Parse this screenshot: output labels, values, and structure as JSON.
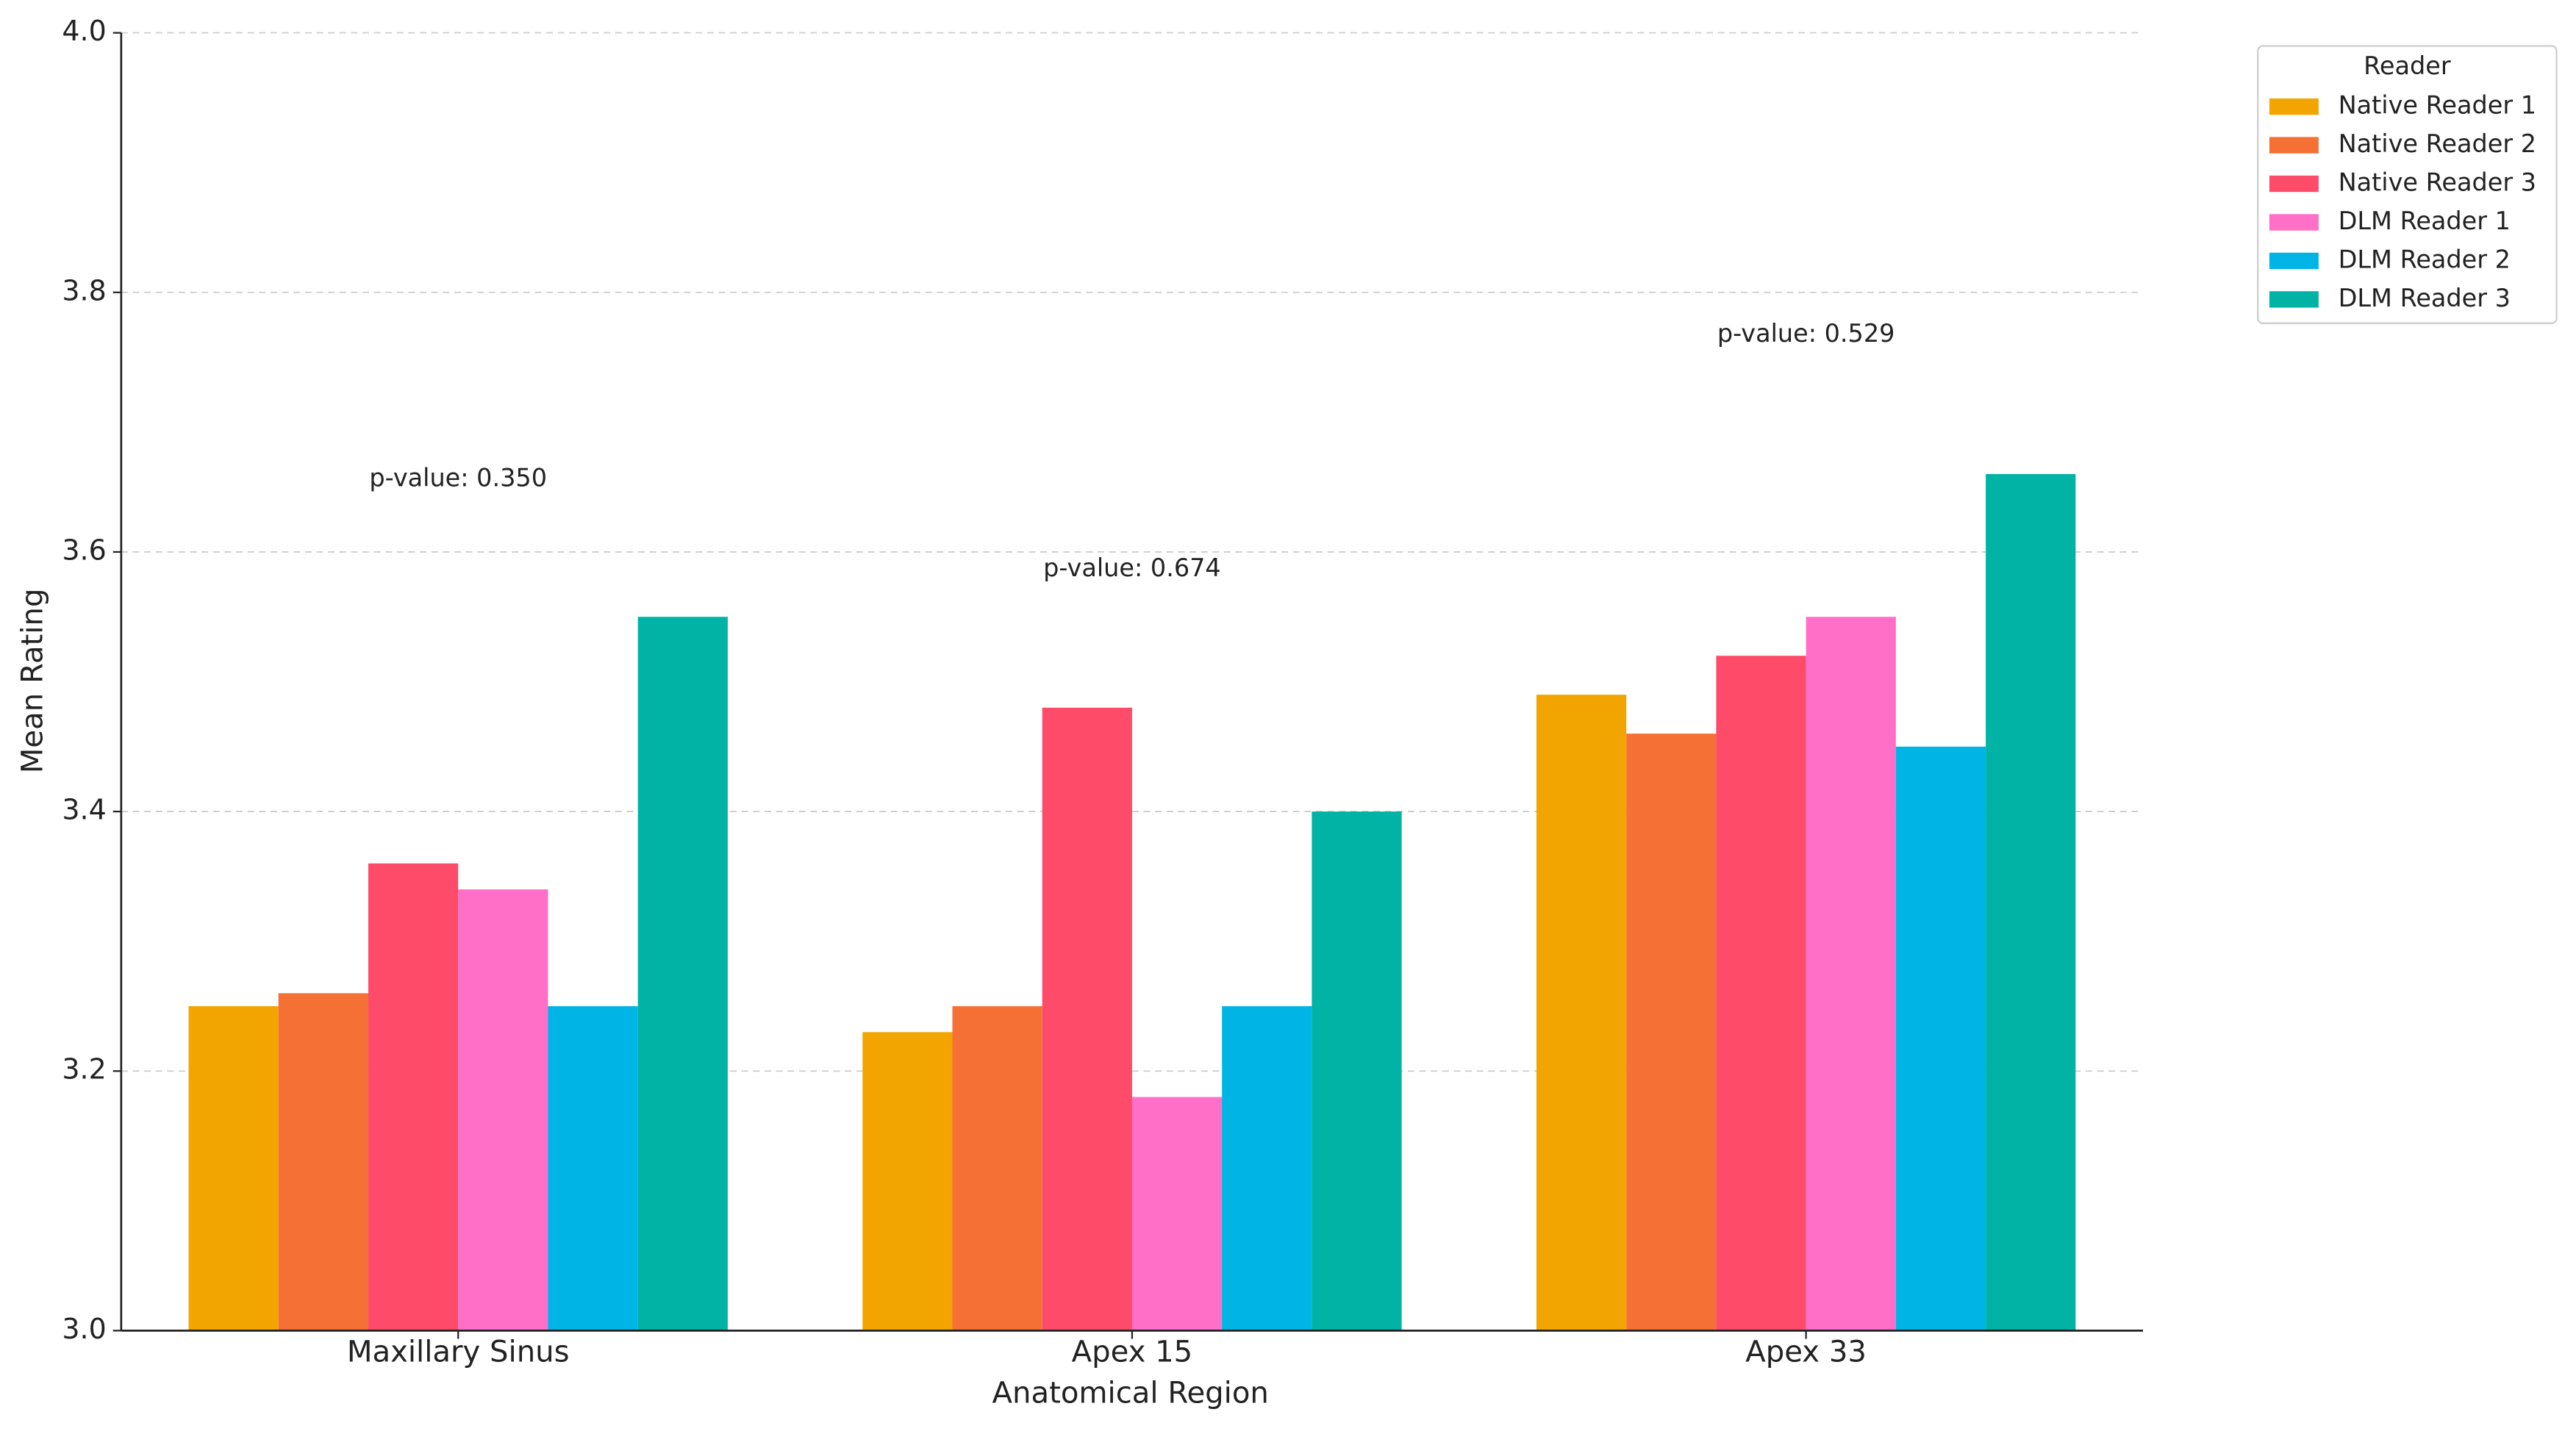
{
  "chart_data": {
    "type": "bar",
    "x_label": "Anatomical Region",
    "y_label": "Mean Rating",
    "categories": [
      "Maxillary Sinus",
      "Apex 15",
      "Apex 33"
    ],
    "series": [
      {
        "name": "Native Reader 1",
        "color": "#F2A500",
        "values": [
          3.25,
          3.23,
          3.49
        ]
      },
      {
        "name": "Native Reader 2",
        "color": "#F57035",
        "values": [
          3.26,
          3.25,
          3.46
        ]
      },
      {
        "name": "Native Reader 3",
        "color": "#FF4B6A",
        "values": [
          3.36,
          3.48,
          3.52
        ]
      },
      {
        "name": "DLM Reader 1",
        "color": "#FF6EC7",
        "values": [
          3.34,
          3.18,
          3.55
        ]
      },
      {
        "name": "DLM Reader 2",
        "color": "#00B4E6",
        "values": [
          3.25,
          3.25,
          3.45
        ]
      },
      {
        "name": "DLM Reader 3",
        "color": "#00B3A4",
        "values": [
          3.55,
          3.4,
          3.66
        ]
      }
    ],
    "legend_title": "Reader",
    "legend_position": "upper right outside",
    "annotations": [
      "p-value: 0.350",
      "p-value: 0.674",
      "p-value: 0.529"
    ],
    "ylim": [
      3.0,
      4.0
    ],
    "yticks": [
      {
        "value": 3.0,
        "label": "3.0"
      },
      3.2,
      3.4,
      3.6,
      3.8,
      {
        "value": 4.0,
        "label": "4.0"
      }
    ],
    "grid": true
  }
}
